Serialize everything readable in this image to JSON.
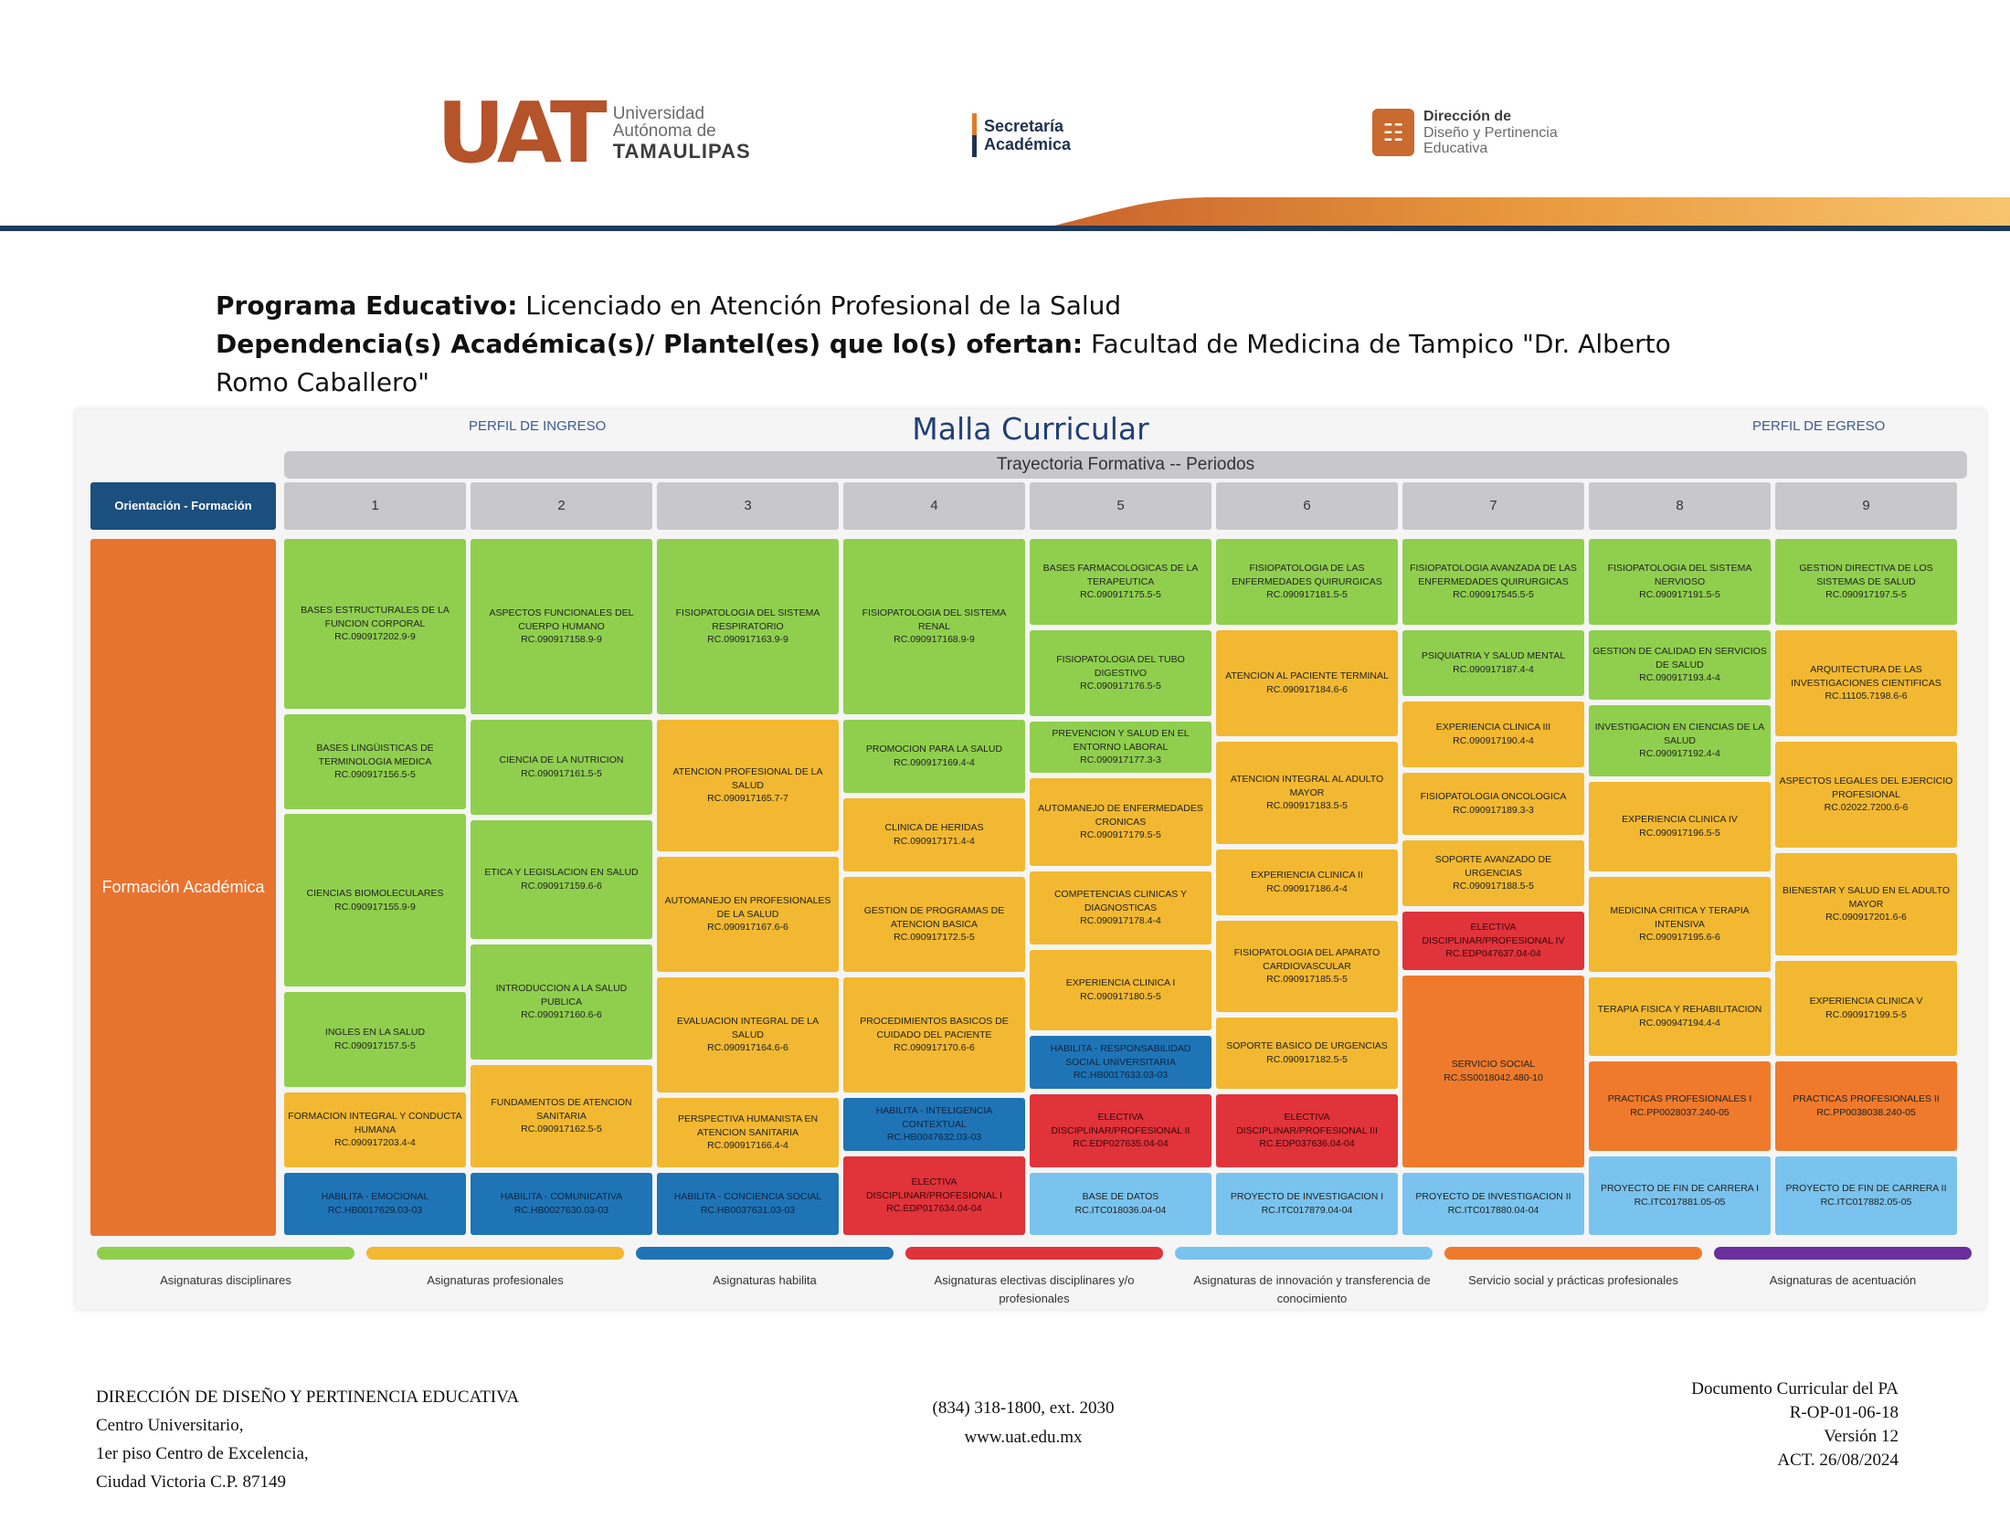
{
  "header": {
    "uat_mark": "UAT",
    "uat_line1": "Universidad",
    "uat_line2": "Autónoma de",
    "uat_line3": "TAMAULIPAS",
    "sa_line1": "Secretaría",
    "sa_line2": "Académica",
    "dd_line1": "Dirección de",
    "dd_line2": "Diseño y Pertinencia",
    "dd_line3": "Educativa"
  },
  "program": {
    "pe_label": "Programa Educativo:",
    "pe_value": " Licenciado en Atención Profesional de la Salud",
    "dep_label": "Dependencia(s) Académica(s)/ Plantel(es) que lo(s) ofertan:",
    "dep_value": " Facultad de Medicina de Tampico \"Dr. Alberto Romo Caballero\""
  },
  "mesh": {
    "title": "Malla Curricular",
    "perfil_ingreso": "PERFIL DE INGRESO",
    "perfil_egreso": "PERFIL DE EGRESO",
    "trayectoria": "Trayectoria Formativa -- Periodos",
    "orientacion_head": "Orientación - Formación",
    "orientacion_body": "Formación Académica",
    "periods": [
      "1",
      "2",
      "3",
      "4",
      "5",
      "6",
      "7",
      "8",
      "9"
    ],
    "colors": {
      "green": "#8fcf4d",
      "yellow": "#f2b831",
      "navy": "#1f74b5",
      "red": "#e0333a",
      "light": "#79c3ee",
      "orange": "#ef7a2c",
      "purple": "#6a2f9c"
    },
    "courses": {
      "p1_1_name": "BASES ESTRUCTURALES DE LA FUNCION CORPORAL",
      "p1_1_code": "RC.090917202.9-9",
      "p1_2_name": "BASES LINGÜISTICAS DE TERMINOLOGIA MEDICA",
      "p1_2_code": "RC.090917156.5-5",
      "p1_3_name": "CIENCIAS BIOMOLECULARES",
      "p1_3_code": "RC.090917155.9-9",
      "p1_4_name": "INGLES EN LA SALUD",
      "p1_4_code": "RC.090917157.5-5",
      "p1_5_name": "FORMACION INTEGRAL Y CONDUCTA HUMANA",
      "p1_5_code": "RC.090917203.4-4",
      "p1_6_name": "HABILITA - EMOCIONAL",
      "p1_6_code": "RC.HB0017629.03-03",
      "p2_1_name": "ASPECTOS FUNCIONALES DEL CUERPO HUMANO",
      "p2_1_code": "RC.090917158.9-9",
      "p2_2_name": "CIENCIA DE LA NUTRICION",
      "p2_2_code": "RC.090917161.5-5",
      "p2_3_name": "ETICA Y LEGISLACION EN SALUD",
      "p2_3_code": "RC.090917159.6-6",
      "p2_4_name": "INTRODUCCION A LA SALUD PUBLICA",
      "p2_4_code": "RC.090917160.6-6",
      "p2_5_name": "FUNDAMENTOS DE ATENCION SANITARIA",
      "p2_5_code": "RC.090917162.5-5",
      "p2_6_name": "HABILITA - COMUNICATIVA",
      "p2_6_code": "RC.HB0027630.03-03",
      "p3_1_name": "FISIOPATOLOGIA DEL SISTEMA RESPIRATORIO",
      "p3_1_code": "RC.090917163.9-9",
      "p3_2_name": "ATENCION PROFESIONAL DE LA SALUD",
      "p3_2_code": "RC.090917165.7-7",
      "p3_3_name": "AUTOMANEJO EN PROFESIONALES DE LA SALUD",
      "p3_3_code": "RC.090917167.6-6",
      "p3_4_name": "EVALUACION INTEGRAL DE LA SALUD",
      "p3_4_code": "RC.090917164.6-6",
      "p3_5_name": "PERSPECTIVA HUMANISTA EN ATENCION SANITARIA",
      "p3_5_code": "RC.090917166.4-4",
      "p3_6_name": "HABILITA - CONCIENCIA SOCIAL",
      "p3_6_code": "RC.HB0037631.03-03",
      "p4_1_name": "FISIOPATOLOGIA DEL SISTEMA RENAL",
      "p4_1_code": "RC.090917168.9-9",
      "p4_2_name": "PROMOCION PARA LA SALUD",
      "p4_2_code": "RC.090917169.4-4",
      "p4_3_name": "CLINICA DE HERIDAS",
      "p4_3_code": "RC.090917171.4-4",
      "p4_4_name": "GESTION DE PROGRAMAS DE ATENCION BASICA",
      "p4_4_code": "RC.090917172.5-5",
      "p4_5_name": "PROCEDIMIENTOS BASICOS DE CUIDADO DEL PACIENTE",
      "p4_5_code": "RC.090917170.6-6",
      "p4_6_name": "HABILITA - INTELIGENCIA CONTEXTUAL",
      "p4_6_code": "RC.HB0047632.03-03",
      "p4_7_name": "ELECTIVA DISCIPLINAR/PROFESIONAL I",
      "p4_7_code": "RC.EDP017634.04-04",
      "p5_1_name": "BASES FARMACOLOGICAS DE LA TERAPEUTICA",
      "p5_1_code": "RC.090917175.5-5",
      "p5_2_name": "FISIOPATOLOGIA DEL TUBO DIGESTIVO",
      "p5_2_code": "RC.090917176.5-5",
      "p5_3_name": "PREVENCION Y SALUD EN EL ENTORNO LABORAL",
      "p5_3_code": "RC.090917177.3-3",
      "p5_4_name": "AUTOMANEJO DE ENFERMEDADES CRONICAS",
      "p5_4_code": "RC.090917179.5-5",
      "p5_5_name": "COMPETENCIAS CLINICAS Y DIAGNOSTICAS",
      "p5_5_code": "RC.090917178.4-4",
      "p5_6_name": "EXPERIENCIA CLINICA I",
      "p5_6_code": "RC.090917180.5-5",
      "p5_7_name": "HABILITA - RESPONSABILIDAD SOCIAL UNIVERSITARIA",
      "p5_7_code": "RC.HB0017633.03-03",
      "p5_8_name": "ELECTIVA DISCIPLINAR/PROFESIONAL II",
      "p5_8_code": "RC.EDP027635.04-04",
      "p5_9_name": "BASE DE DATOS",
      "p5_9_code": "RC.ITC018036.04-04",
      "p6_1_name": "FISIOPATOLOGIA DE LAS ENFERMEDADES QUIRURGICAS",
      "p6_1_code": "RC.090917181.5-5",
      "p6_2_name": "ATENCION AL PACIENTE TERMINAL",
      "p6_2_code": "RC.090917184.6-6",
      "p6_3_name": "ATENCION INTEGRAL AL ADULTO MAYOR",
      "p6_3_code": "RC.090917183.5-5",
      "p6_4_name": "EXPERIENCIA CLINICA II",
      "p6_4_code": "RC.090917186.4-4",
      "p6_5_name": "FISIOPATOLOGIA DEL APARATO CARDIOVASCULAR",
      "p6_5_code": "RC.090917185.5-5",
      "p6_6_name": "SOPORTE BASICO DE URGENCIAS",
      "p6_6_code": "RC.090917182.5-5",
      "p6_7_name": "ELECTIVA DISCIPLINAR/PROFESIONAL III",
      "p6_7_code": "RC.EDP037636.04-04",
      "p6_8_name": "PROYECTO DE INVESTIGACION I",
      "p6_8_code": "RC.ITC017879.04-04",
      "p7_1_name": "FISIOPATOLOGIA AVANZADA DE LAS ENFERMEDADES QUIRURGICAS",
      "p7_1_code": "RC.090917545.5-5",
      "p7_2_name": "PSIQUIATRIA Y SALUD MENTAL",
      "p7_2_code": "RC.090917187.4-4",
      "p7_3_name": "EXPERIENCIA CLINICA III",
      "p7_3_code": "RC.090917190.4-4",
      "p7_4_name": "FISIOPATOLOGIA ONCOLOGICA",
      "p7_4_code": "RC.090917189.3-3",
      "p7_5_name": "SOPORTE AVANZADO DE URGENCIAS",
      "p7_5_code": "RC.090917188.5-5",
      "p7_6_name": "ELECTIVA DISCIPLINAR/PROFESIONAL IV",
      "p7_6_code": "RC.EDP047637.04-04",
      "p7_7_name": "SERVICIO SOCIAL",
      "p7_7_code": "RC.SS0018042.480-10",
      "p7_8_name": "PROYECTO DE INVESTIGACION II",
      "p7_8_code": "RC.ITC017880.04-04",
      "p8_1_name": "FISIOPATOLOGIA DEL SISTEMA NERVIOSO",
      "p8_1_code": "RC.090917191.5-5",
      "p8_2_name": "GESTION DE CALIDAD EN SERVICIOS DE SALUD",
      "p8_2_code": "RC.090917193.4-4",
      "p8_3_name": "INVESTIGACION EN CIENCIAS DE LA SALUD",
      "p8_3_code": "RC.090917192.4-4",
      "p8_4_name": "EXPERIENCIA CLINICA IV",
      "p8_4_code": "RC.090917196.5-5",
      "p8_5_name": "MEDICINA CRITICA Y TERAPIA INTENSIVA",
      "p8_5_code": "RC.090917195.6-6",
      "p8_6_name": "TERAPIA FISICA Y REHABILITACION",
      "p8_6_code": "RC.090947194.4-4",
      "p8_7_name": "PRACTICAS PROFESIONALES I",
      "p8_7_code": "RC.PP0028037.240-05",
      "p8_8_name": "PROYECTO DE FIN DE CARRERA I",
      "p8_8_code": "RC.ITC017881.05-05",
      "p9_1_name": "GESTION DIRECTIVA DE LOS SISTEMAS DE SALUD",
      "p9_1_code": "RC.090917197.5-5",
      "p9_2_name": "ARQUITECTURA DE LAS INVESTIGACIONES CIENTIFICAS",
      "p9_2_code": "RC.11105.7198.6-6",
      "p9_3_name": "ASPECTOS LEGALES DEL EJERCICIO PROFESIONAL",
      "p9_3_code": "RC.02022.7200.6-6",
      "p9_4_name": "BIENESTAR Y SALUD EN EL ADULTO MAYOR",
      "p9_4_code": "RC.090917201.6-6",
      "p9_5_name": "EXPERIENCIA CLINICA V",
      "p9_5_code": "RC.090917199.5-5",
      "p9_6_name": "PRACTICAS PROFESIONALES II",
      "p9_6_code": "RC.PP0038038.240-05",
      "p9_7_name": "PROYECTO DE FIN DE CARRERA II",
      "p9_7_code": "RC.ITC017882.05-05"
    },
    "legend": [
      "Asignaturas disciplinares",
      "Asignaturas profesionales",
      "Asignaturas habilita",
      "Asignaturas electivas disciplinares y/o profesionales",
      "Asignaturas de innovación y transferencia de conocimiento",
      "Servicio social y prácticas profesionales",
      "Asignaturas de acentuación"
    ]
  },
  "footer": {
    "left": [
      "DIRECCIÓN DE DISEÑO Y PERTINENCIA EDUCATIVA",
      "Centro Universitario,",
      "1er piso Centro de Excelencia,",
      "Ciudad Victoria C.P. 87149"
    ],
    "center": [
      "(834) 318-1800, ext. 2030",
      "www.uat.edu.mx"
    ],
    "right": [
      "Documento Curricular del PA",
      "R-OP-01-06-18",
      "Versión 12",
      "ACT. 26/08/2024"
    ]
  }
}
